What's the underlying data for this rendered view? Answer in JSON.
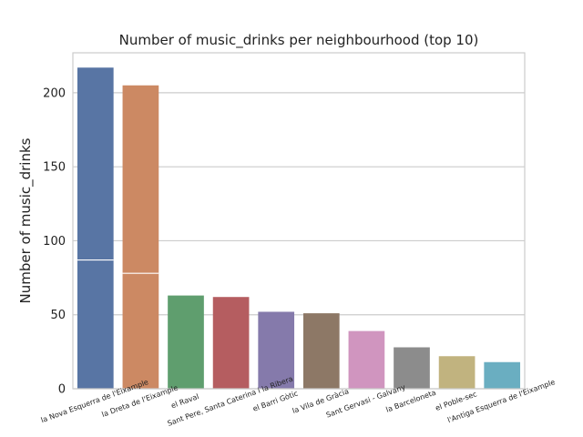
{
  "chart_data": {
    "type": "bar",
    "title": "Number of music_drinks per neighbourhood (top 10)",
    "xlabel": "",
    "ylabel": "Number of music_drinks",
    "ylim": [
      0,
      227
    ],
    "yticks": [
      0,
      50,
      100,
      150,
      200
    ],
    "grid": "horizontal",
    "categories": [
      "la Nova Esquerra de l'Eixample",
      "la Dreta de l'Eixample",
      "el Raval",
      "Sant Pere, Santa Caterina i la Ribera",
      "el Barri Gòtic",
      "la Vila de Gràcia",
      "Sant Gervasi - Galvany",
      "la Barceloneta",
      "el Poble-sec",
      "l'Antiga Esquerra de l'Eixample"
    ],
    "values": [
      217,
      205,
      63,
      62,
      52,
      51,
      39,
      28,
      22,
      18
    ],
    "overlay_lines": [
      87,
      78,
      null,
      null,
      null,
      null,
      null,
      null,
      null,
      null
    ],
    "colors": [
      "#5875a4",
      "#cc8963",
      "#5f9e6e",
      "#b55d60",
      "#857aab",
      "#8d7866",
      "#d095bf",
      "#8c8c8c",
      "#c1b37f",
      "#6aaec1"
    ]
  }
}
